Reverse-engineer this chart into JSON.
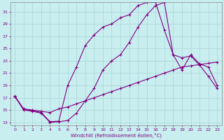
{
  "xlabel": "Windchill (Refroidissement éolien,°C)",
  "bg_color": "#c8eef0",
  "grid_color": "#aadddd",
  "line_color": "#800080",
  "xlim": [
    -0.5,
    23.5
  ],
  "ylim": [
    12.5,
    32.5
  ],
  "yticks": [
    13,
    15,
    17,
    19,
    21,
    23,
    25,
    27,
    29,
    31
  ],
  "xticks": [
    0,
    1,
    2,
    3,
    4,
    5,
    6,
    7,
    8,
    9,
    10,
    11,
    12,
    13,
    14,
    15,
    16,
    17,
    18,
    19,
    20,
    21,
    22,
    23
  ],
  "line1_x": [
    0,
    1,
    2,
    3,
    4,
    5,
    6,
    7,
    8,
    9,
    10,
    11,
    12,
    13,
    14,
    15,
    16,
    17,
    18,
    19,
    20,
    21,
    22,
    23
  ],
  "line1_y": [
    17.2,
    15.2,
    15.0,
    14.8,
    14.6,
    15.2,
    15.5,
    16.0,
    16.5,
    17.0,
    17.5,
    18.0,
    18.5,
    19.0,
    19.5,
    20.0,
    20.5,
    21.0,
    21.5,
    22.0,
    22.2,
    22.4,
    22.6,
    22.8
  ],
  "line2_x": [
    0,
    1,
    2,
    3,
    4,
    5,
    6,
    7,
    8,
    9,
    10,
    11,
    12,
    13,
    14,
    15,
    16,
    17,
    18,
    19,
    20,
    21,
    22,
    23
  ],
  "line2_y": [
    17.2,
    15.0,
    14.8,
    14.5,
    13.0,
    13.1,
    13.3,
    14.5,
    16.5,
    18.5,
    21.5,
    23.0,
    24.0,
    26.0,
    28.5,
    30.5,
    32.0,
    32.5,
    24.0,
    21.5,
    24.0,
    22.5,
    22.0,
    19.0
  ],
  "line3_x": [
    0,
    1,
    2,
    3,
    4,
    5,
    6,
    7,
    8,
    9,
    10,
    11,
    12,
    13,
    14,
    15,
    16,
    17,
    18,
    19,
    20,
    21,
    22,
    23
  ],
  "line3_y": [
    17.3,
    15.1,
    14.9,
    14.6,
    13.1,
    13.2,
    19.0,
    22.0,
    25.5,
    27.2,
    28.5,
    29.0,
    30.0,
    30.5,
    32.0,
    32.5,
    32.5,
    28.0,
    24.0,
    23.5,
    23.8,
    22.3,
    20.5,
    18.5
  ]
}
